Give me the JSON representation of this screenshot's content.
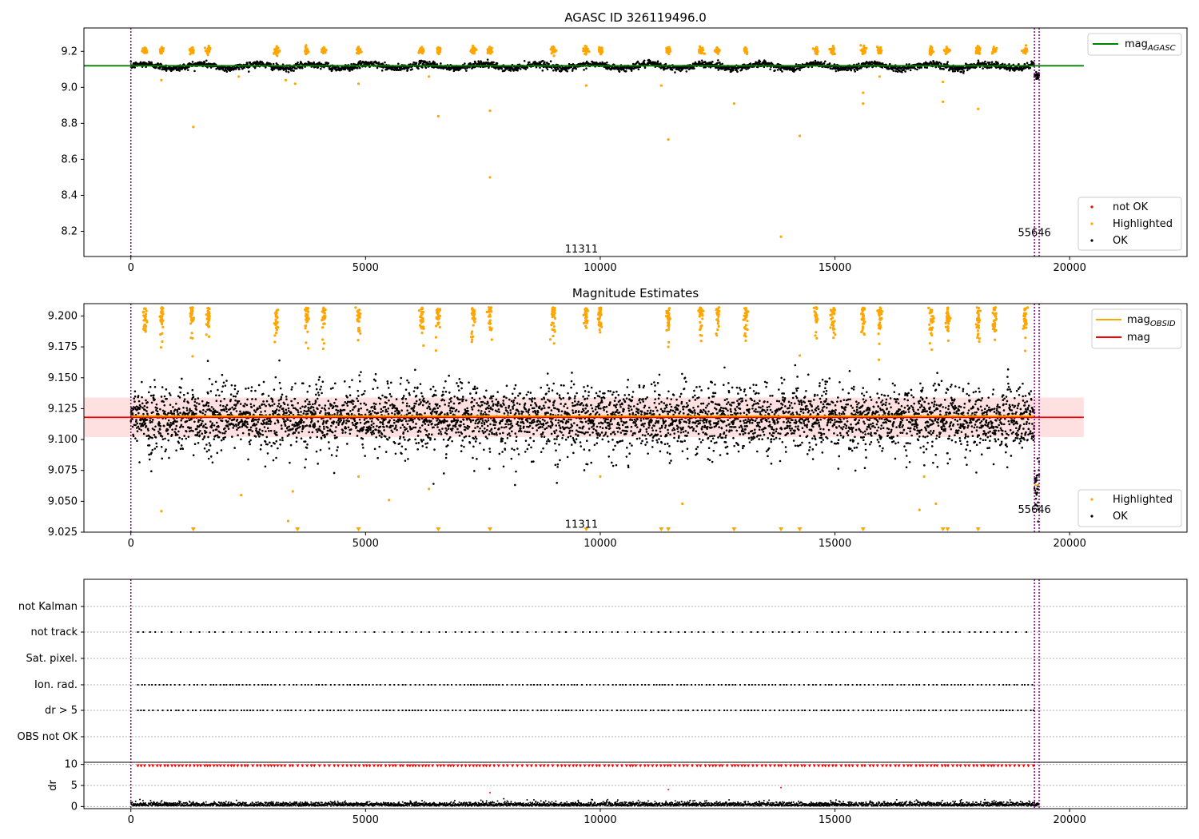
{
  "figure": {
    "panels": [
      {
        "id": "agasc",
        "title": "AGASC ID 326119496.0",
        "legend_upper": [
          {
            "label": "mag",
            "sub": "AGASC",
            "color": "#008000"
          }
        ],
        "legend_lower": [
          {
            "label": "not OK",
            "color": "#ff0000"
          },
          {
            "label": "Highlighted",
            "color": "#ffa500"
          },
          {
            "label": "OK",
            "color": "#000000"
          }
        ],
        "annotations": [
          "11311",
          "55646"
        ]
      },
      {
        "id": "estimates",
        "title": "Magnitude Estimates",
        "legend_upper": [
          {
            "label": "mag",
            "sub": "OBSID",
            "color": "#ffa500"
          },
          {
            "label": "mag",
            "sub": "",
            "color": "#ff0000"
          }
        ],
        "legend_lower": [
          {
            "label": "Highlighted",
            "color": "#ffa500"
          },
          {
            "label": "OK",
            "color": "#000000"
          }
        ],
        "annotations": [
          "11311",
          "55646"
        ]
      },
      {
        "id": "flags",
        "title": "",
        "annotations": []
      }
    ]
  },
  "chart_data": [
    {
      "type": "scatter",
      "title": "AGASC ID 326119496.0",
      "xlim": [
        -1000,
        22500
      ],
      "ylim": [
        8.06,
        9.33
      ],
      "x_ticks": [
        0,
        5000,
        10000,
        15000,
        20000
      ],
      "y_ticks": [
        8.2,
        8.4,
        8.6,
        8.8,
        9.0,
        9.2
      ],
      "y_tick_labels": [
        "8.2",
        "8.4",
        "8.6",
        "8.8",
        "9.0",
        "9.2"
      ],
      "mag_agasc": 9.12,
      "mag_agasc_x_range": [
        -1000,
        20300
      ],
      "obs_boundaries": [
        0,
        19250,
        19350
      ],
      "obs_labels": [
        {
          "text": "11311",
          "x": 9600,
          "y": 8.1
        },
        {
          "text": "55646",
          "x": 19250,
          "y": 8.19
        }
      ],
      "series": [
        {
          "name": "OK",
          "color": "#000000",
          "description": "~19300 dense points, mag 9.09-9.15, dip to ~9.06 after x=19250"
        },
        {
          "name": "Highlighted",
          "color": "#ffa500",
          "clusters_x": [
            300,
            650,
            1300,
            1650,
            3100,
            3750,
            4100,
            4850,
            6200,
            6550,
            7300,
            7650,
            9000,
            9700,
            10000,
            11450,
            12150,
            12500,
            13100,
            14600,
            14950,
            15600,
            15950,
            17050,
            17400,
            18050,
            18400,
            19050
          ],
          "outliers": [
            [
              1330,
              8.78
            ],
            [
              6550,
              8.84
            ],
            [
              7650,
              8.87
            ],
            [
              7650,
              8.5
            ],
            [
              11450,
              8.71
            ],
            [
              12850,
              8.91
            ],
            [
              13850,
              8.17
            ],
            [
              14250,
              8.73
            ],
            [
              15600,
              8.91
            ],
            [
              15600,
              8.97
            ],
            [
              17300,
              8.92
            ],
            [
              18050,
              8.88
            ]
          ]
        }
      ]
    },
    {
      "type": "scatter",
      "title": "Magnitude Estimates",
      "xlim": [
        -1000,
        22500
      ],
      "ylim": [
        9.025,
        9.21
      ],
      "x_ticks": [
        0,
        5000,
        10000,
        15000,
        20000
      ],
      "y_ticks": [
        9.025,
        9.05,
        9.075,
        9.1,
        9.125,
        9.15,
        9.175,
        9.2
      ],
      "y_tick_labels": [
        "9.025",
        "9.050",
        "9.075",
        "9.100",
        "9.125",
        "9.150",
        "9.175",
        "9.200"
      ],
      "mag": 9.118,
      "mag_band": [
        9.102,
        9.134
      ],
      "mag_obsid": 9.119,
      "obs_boundaries": [
        0,
        19250,
        19350
      ],
      "obs_labels": [
        {
          "text": "11311",
          "x": 9600,
          "y": 9.031
        },
        {
          "text": "55646",
          "x": 19250,
          "y": 9.043
        }
      ],
      "series": [
        {
          "name": "OK",
          "color": "#000000",
          "description": "dense noisy points 9.07-9.16 centered ~9.117, dip to ~9.04-9.08 after x=19250"
        },
        {
          "name": "Highlighted",
          "color": "#ffa500",
          "description": "points mostly above 9.17, clipped at top; a few low outliers near bottom (triangles)"
        }
      ]
    },
    {
      "type": "scatter",
      "title": "",
      "xlim": [
        -1000,
        22500
      ],
      "categories": [
        "not Kalman",
        "not track",
        "Sat. pixel.",
        "Ion. rad.",
        "dr > 5",
        "OBS not OK"
      ],
      "flag_rows_with_marks": [
        "not track",
        "Ion. rad.",
        "dr > 5"
      ],
      "dr_ylabel": "dr",
      "dr_ylim": [
        -0.5,
        10.5
      ],
      "dr_y_ticks": [
        0,
        5,
        10
      ],
      "x_ticks": [
        0,
        5000,
        10000,
        15000,
        20000
      ],
      "obs_boundaries": [
        0,
        19250,
        19350
      ],
      "series": [
        {
          "name": "dr OK",
          "color": "#000000",
          "description": "points 0-1.5"
        },
        {
          "name": "dr > 5",
          "color": "#ff0000",
          "description": "clipped at 10 with triangles, a few at 3-4.5"
        }
      ]
    }
  ]
}
